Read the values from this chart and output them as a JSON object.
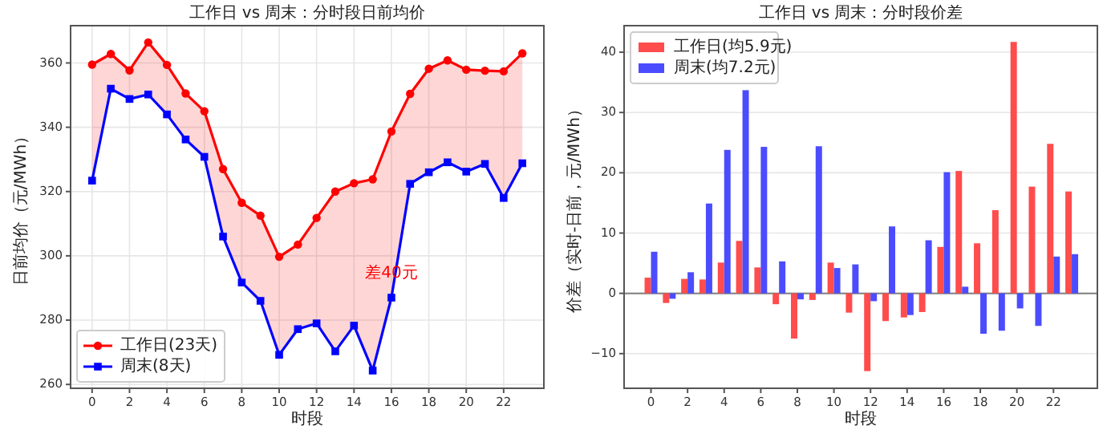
{
  "chart_data": [
    {
      "type": "line",
      "title": "工作日 vs 周末：分时段日前均价",
      "xlabel": "时段",
      "ylabel": "日前均价（元/MWh）",
      "x": [
        0,
        1,
        2,
        3,
        4,
        5,
        6,
        7,
        8,
        9,
        10,
        11,
        12,
        13,
        14,
        15,
        16,
        17,
        18,
        19,
        20,
        21,
        22,
        23
      ],
      "xlim": [
        -1.15,
        24.15
      ],
      "xticks": [
        0,
        2,
        4,
        6,
        8,
        10,
        12,
        14,
        16,
        18,
        20,
        22
      ],
      "ylim": [
        258.8,
        371.6
      ],
      "yticks": [
        260,
        280,
        300,
        320,
        340,
        360
      ],
      "grid": true,
      "legend": "bottom left",
      "series": [
        {
          "name": "工作日(23天)",
          "color": "#ff0000",
          "marker": "circle",
          "values": [
            359.5,
            362.8,
            357.7,
            366.4,
            359.4,
            350.5,
            345,
            327,
            316.5,
            312.5,
            299.7,
            303.5,
            311.8,
            320,
            322.6,
            323.8,
            338.7,
            350.4,
            358.2,
            360.8,
            357.9,
            357.6,
            357.4,
            363
          ],
          "lower": [
            323.4,
            352,
            348.8,
            350.2,
            344,
            336.2,
            330.8,
            306,
            291.7,
            286,
            269.2,
            277.2,
            279,
            270.3,
            278.3,
            264.3,
            287,
            322.4,
            326,
            329.1,
            326.2,
            328.6,
            318,
            328.8
          ],
          "upper": [
            359.5,
            362.8,
            357.7,
            366.4,
            359.4,
            350.5,
            345,
            327,
            316.5,
            312.5,
            299.7,
            303.5,
            311.8,
            320,
            322.6,
            323.8,
            338.7,
            350.4,
            358.2,
            360.8,
            357.9,
            357.6,
            357.4,
            363
          ]
        },
        {
          "name": "周末(8天)",
          "color": "#0000ff",
          "marker": "square",
          "values": [
            323.4,
            352,
            348.8,
            350.2,
            344,
            336.2,
            330.8,
            306,
            291.7,
            286,
            269.2,
            277.2,
            279,
            270.3,
            278.3,
            264.3,
            287,
            322.4,
            326,
            329.1,
            326.2,
            328.6,
            318,
            328.8
          ]
        }
      ],
      "annotations": [
        {
          "text": "差40元",
          "x": 16,
          "y": 294.5
        }
      ]
    },
    {
      "type": "bar",
      "title": "工作日 vs 周末：分时段价差",
      "xlabel": "时段",
      "ylabel": "价差（实时-日前，元/MWh）",
      "x": [
        0,
        1,
        2,
        3,
        4,
        5,
        6,
        7,
        8,
        9,
        10,
        11,
        12,
        13,
        14,
        15,
        16,
        17,
        18,
        19,
        20,
        21,
        22,
        23
      ],
      "xlim": [
        -1.47,
        24.4
      ],
      "xticks": [
        0,
        2,
        4,
        6,
        8,
        10,
        12,
        14,
        16,
        18,
        20,
        22
      ],
      "ylim": [
        -15.75,
        44.4
      ],
      "yticks": [
        -10,
        0,
        10,
        20,
        30,
        40
      ],
      "grid": "y",
      "legend": "top left",
      "ref_lines": [
        {
          "axis": "y",
          "value": 0,
          "color": "#808080"
        }
      ],
      "series": [
        {
          "name": "工作日(均5.9元)",
          "color": "#ff4c4c",
          "values": [
            2.6,
            -1.6,
            2.4,
            2.3,
            5.1,
            8.7,
            4.3,
            -1.8,
            -7.5,
            -1.1,
            5.1,
            -3.2,
            -12.9,
            -4.6,
            -4.0,
            -3.1,
            7.7,
            20.3,
            8.3,
            13.8,
            41.7,
            17.7,
            24.8,
            16.9
          ]
        },
        {
          "name": "周末(均7.2元)",
          "color": "#4c4cff",
          "values": [
            6.9,
            -0.9,
            3.5,
            14.9,
            23.8,
            33.7,
            24.3,
            5.3,
            -1.0,
            24.4,
            4.2,
            4.8,
            -1.3,
            11.1,
            -3.6,
            8.8,
            20.1,
            1.1,
            -6.7,
            -6.2,
            -2.5,
            -5.4,
            6.1,
            6.5
          ]
        }
      ]
    }
  ]
}
